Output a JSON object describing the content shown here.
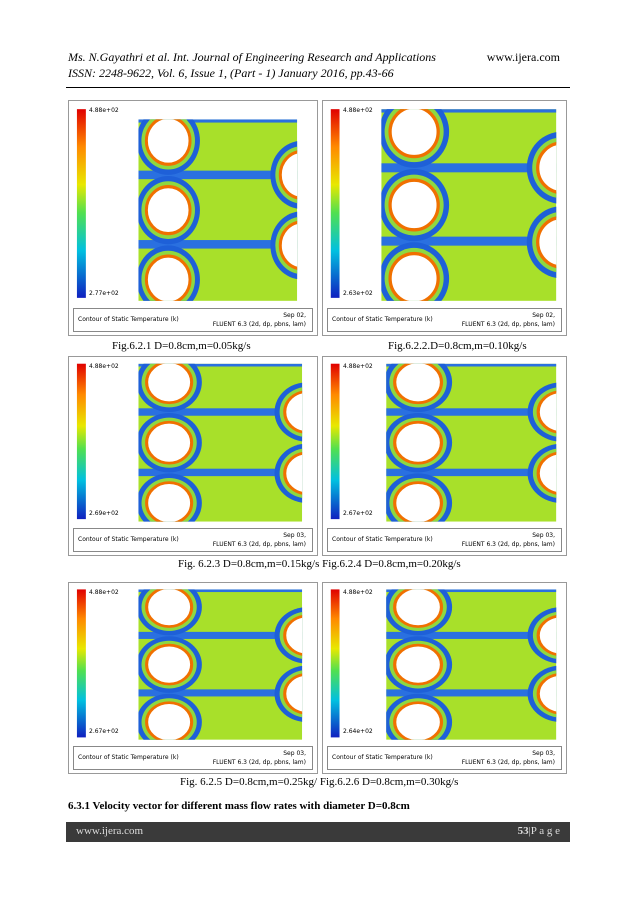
{
  "header": {
    "authors": "Ms. N.Gayathri et al. Int. Journal of Engineering Research and Applications",
    "website": "www.ijera.com",
    "issn": "ISSN: 2248-9622, Vol. 6, Issue 1, (Part - 1) January 2016, pp.43-66"
  },
  "figures": [
    {
      "max_label": "4.88e+02",
      "min_label": "2.77e+02",
      "legend_title": "Contour of Static Temperature (k)",
      "date": "Sep 02,",
      "software": "FLUENT 6.3 (2d, dp, pbns, lam)"
    },
    {
      "max_label": "4.88e+02",
      "min_label": "2.63e+02",
      "legend_title": "Contour of Static Temperature (k)",
      "date": "Sep 02,",
      "software": "FLUENT 6.3 (2d, dp, pbns, lam)"
    },
    {
      "max_label": "4.88e+02",
      "min_label": "2.69e+02",
      "legend_title": "Contour of Static Temperature (k)",
      "date": "Sep 03,",
      "software": "FLUENT 6.3 (2d, dp, pbns, lam)"
    },
    {
      "max_label": "4.88e+02",
      "min_label": "2.67e+02",
      "legend_title": "Contour of Static Temperature (k)",
      "date": "Sep 03,",
      "software": "FLUENT 6.3 (2d, dp, pbns, lam)"
    },
    {
      "max_label": "4.88e+02",
      "min_label": "2.67e+02",
      "legend_title": "Contour of Static Temperature (k)",
      "date": "Sep 03,",
      "software": "FLUENT 6.3 (2d, dp, pbns, lam)"
    },
    {
      "max_label": "4.88e+02",
      "min_label": "2.64e+02",
      "legend_title": "Contour of Static Temperature (k)",
      "date": "Sep 03,",
      "software": "FLUENT 6.3 (2d, dp, pbns, lam)"
    }
  ],
  "captions": [
    "Fig.6.2.1 D=0.8cm,m=0.05kg/s",
    "Fig.6.2.2.D=0.8cm,m=0.10kg/s",
    "Fig. 6.2.3 D=0.8cm,m=0.15kg/s Fig.6.2.4 D=0.8cm,m=0.20kg/s",
    "Fig. 6.2.5 D=0.8cm,m=0.25kg/  Fig.6.2.6 D=0.8cm,m=0.30kg/s"
  ],
  "section_heading": "6.3.1 Velocity vector for different mass flow rates with diameter D=0.8cm",
  "footer": {
    "website": "www.ijera.com",
    "page": "53",
    "page_label": "|P a g e"
  }
}
